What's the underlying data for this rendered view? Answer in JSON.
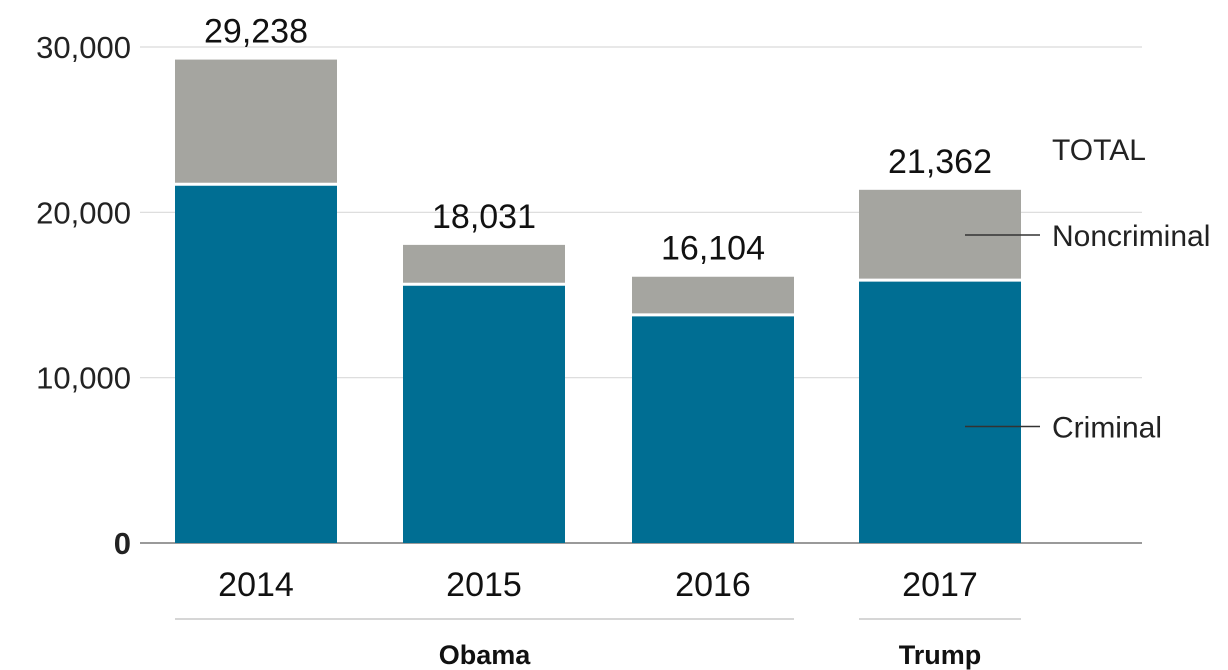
{
  "chart_data": {
    "type": "bar",
    "stacked": true,
    "categories": [
      "2014",
      "2015",
      "2016",
      "2017"
    ],
    "series": [
      {
        "name": "Criminal",
        "values": [
          21700,
          15650,
          13800,
          15900
        ],
        "color": "#006e93"
      },
      {
        "name": "Noncriminal",
        "values": [
          7538,
          2381,
          2304,
          5462
        ],
        "color": "#a5a5a0"
      }
    ],
    "totals": [
      29238,
      18031,
      16104,
      21362
    ],
    "total_labels": [
      "29,238",
      "18,031",
      "16,104",
      "21,362"
    ],
    "total_marker": "TOTAL",
    "ylim": [
      0,
      30000
    ],
    "yticks": [
      {
        "value": 0,
        "label": "0"
      },
      {
        "value": 10000,
        "label": "10,000"
      },
      {
        "value": 20000,
        "label": "20,000"
      },
      {
        "value": 30000,
        "label": "30,000"
      }
    ],
    "grid": true,
    "legend_placement": "right, inline beside the 2017 bar",
    "groups": [
      {
        "label": "Obama",
        "categories": [
          "2014",
          "2015",
          "2016"
        ]
      },
      {
        "label": "Trump",
        "categories": [
          "2017"
        ]
      }
    ],
    "title": "",
    "xlabel": "",
    "ylabel": ""
  }
}
